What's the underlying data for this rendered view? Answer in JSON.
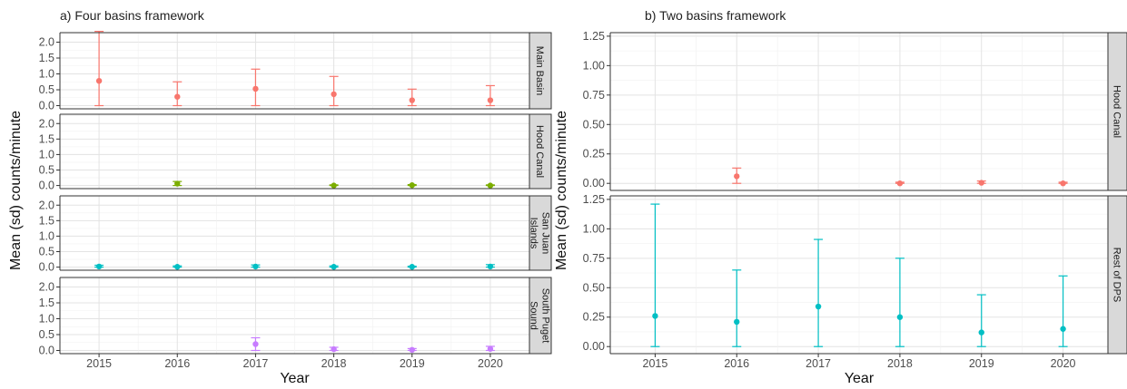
{
  "chart_data": [
    {
      "type": "scatter",
      "title": "a) Four basins framework",
      "xlabel": "Year",
      "ylabel": "Mean (sd) counts/minute",
      "x": [
        2015,
        2016,
        2017,
        2018,
        2019,
        2020
      ],
      "xlim": [
        2014.5,
        2020.5
      ],
      "ylim": [
        -0.1,
        2.3
      ],
      "yticks": [
        "0.0",
        "0.5",
        "1.0",
        "1.5",
        "2.0"
      ],
      "ytick_values": [
        0,
        0.5,
        1.0,
        1.5,
        2.0
      ],
      "grid": true,
      "error_bars": "sd (lower bound clipped at 0)",
      "facets": [
        {
          "name": "Main Basin",
          "strip_lines": [
            "Main Basin"
          ],
          "color": "#F8766D",
          "points": [
            {
              "x": 2015,
              "y": 0.78,
              "lo": 0.0,
              "hi": 2.34
            },
            {
              "x": 2016,
              "y": 0.28,
              "lo": 0.0,
              "hi": 0.75
            },
            {
              "x": 2017,
              "y": 0.53,
              "lo": 0.0,
              "hi": 1.15
            },
            {
              "x": 2018,
              "y": 0.36,
              "lo": 0.0,
              "hi": 0.92
            },
            {
              "x": 2019,
              "y": 0.17,
              "lo": 0.0,
              "hi": 0.52
            },
            {
              "x": 2020,
              "y": 0.17,
              "lo": 0.0,
              "hi": 0.63
            }
          ]
        },
        {
          "name": "Hood Canal",
          "strip_lines": [
            "Hood Canal"
          ],
          "color": "#7CAE00",
          "points": [
            {
              "x": 2016,
              "y": 0.06,
              "lo": 0.0,
              "hi": 0.13
            },
            {
              "x": 2018,
              "y": 0.0,
              "lo": 0.0,
              "hi": 0.02
            },
            {
              "x": 2019,
              "y": 0.01,
              "lo": 0.0,
              "hi": 0.03
            },
            {
              "x": 2020,
              "y": 0.0,
              "lo": 0.0,
              "hi": 0.02
            }
          ]
        },
        {
          "name": "San Juan Islands",
          "strip_lines": [
            "San Juan",
            "Islands"
          ],
          "color": "#00BFC4",
          "points": [
            {
              "x": 2015,
              "y": 0.02,
              "lo": 0.0,
              "hi": 0.06
            },
            {
              "x": 2016,
              "y": 0.01,
              "lo": 0.0,
              "hi": 0.04
            },
            {
              "x": 2017,
              "y": 0.02,
              "lo": 0.0,
              "hi": 0.07
            },
            {
              "x": 2018,
              "y": 0.01,
              "lo": 0.0,
              "hi": 0.04
            },
            {
              "x": 2019,
              "y": 0.01,
              "lo": 0.0,
              "hi": 0.03
            },
            {
              "x": 2020,
              "y": 0.02,
              "lo": 0.0,
              "hi": 0.08
            }
          ]
        },
        {
          "name": "South Puget Sound",
          "strip_lines": [
            "South Puget",
            "Sound"
          ],
          "color": "#C77CFF",
          "points": [
            {
              "x": 2017,
              "y": 0.2,
              "lo": 0.0,
              "hi": 0.4
            },
            {
              "x": 2018,
              "y": 0.04,
              "lo": 0.0,
              "hi": 0.1
            },
            {
              "x": 2019,
              "y": 0.02,
              "lo": 0.0,
              "hi": 0.06
            },
            {
              "x": 2020,
              "y": 0.05,
              "lo": 0.0,
              "hi": 0.13
            }
          ]
        }
      ]
    },
    {
      "type": "scatter",
      "title": "b) Two basins framework",
      "xlabel": "Year",
      "ylabel": "Mean (sd) counts/minute",
      "x": [
        2015,
        2016,
        2017,
        2018,
        2019,
        2020
      ],
      "xlim": [
        2014.45,
        2020.55
      ],
      "ylim": [
        -0.06,
        1.28
      ],
      "yticks": [
        "0.00",
        "0.25",
        "0.50",
        "0.75",
        "1.00",
        "1.25"
      ],
      "ytick_values": [
        0,
        0.25,
        0.5,
        0.75,
        1.0,
        1.25
      ],
      "grid": true,
      "error_bars": "sd (lower bound clipped at 0)",
      "facets": [
        {
          "name": "Hood Canal",
          "strip_lines": [
            "Hood Canal"
          ],
          "color": "#F8766D",
          "points": [
            {
              "x": 2016,
              "y": 0.06,
              "lo": 0.0,
              "hi": 0.13
            },
            {
              "x": 2018,
              "y": 0.0,
              "lo": 0.0,
              "hi": 0.01
            },
            {
              "x": 2019,
              "y": 0.005,
              "lo": 0.0,
              "hi": 0.02
            },
            {
              "x": 2020,
              "y": 0.0,
              "lo": 0.0,
              "hi": 0.01
            }
          ]
        },
        {
          "name": "Rest of DPS",
          "strip_lines": [
            "Rest of DPS"
          ],
          "color": "#00BFC4",
          "points": [
            {
              "x": 2015,
              "y": 0.26,
              "lo": 0.0,
              "hi": 1.21
            },
            {
              "x": 2016,
              "y": 0.21,
              "lo": 0.0,
              "hi": 0.65
            },
            {
              "x": 2017,
              "y": 0.34,
              "lo": 0.0,
              "hi": 0.91
            },
            {
              "x": 2018,
              "y": 0.25,
              "lo": 0.0,
              "hi": 0.75
            },
            {
              "x": 2019,
              "y": 0.12,
              "lo": 0.0,
              "hi": 0.44
            },
            {
              "x": 2020,
              "y": 0.15,
              "lo": 0.0,
              "hi": 0.6
            }
          ]
        }
      ]
    }
  ]
}
